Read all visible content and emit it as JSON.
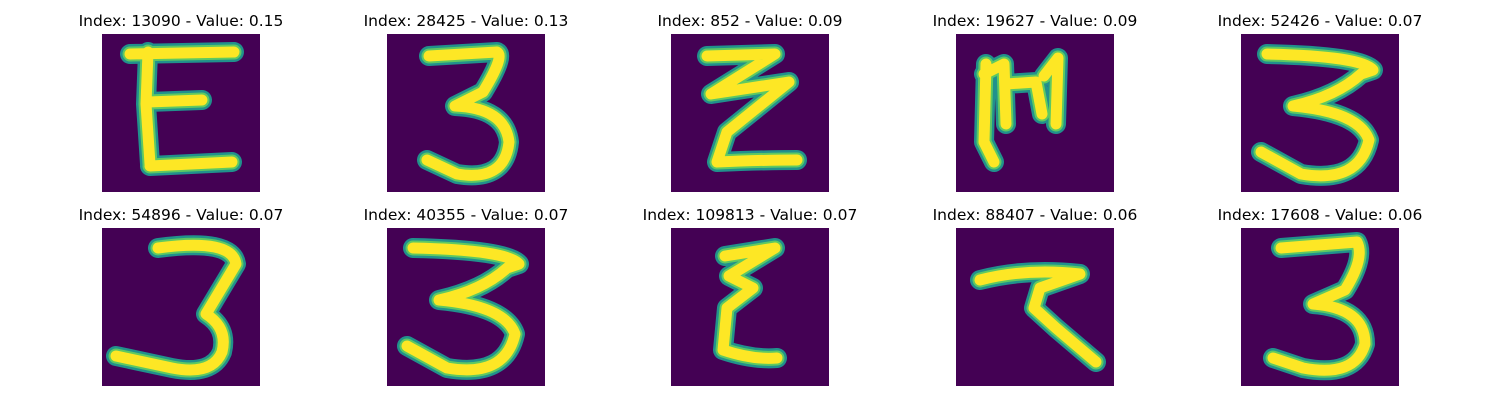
{
  "panels": [
    {
      "title": "Index: 13090 - Value: 0.15",
      "glyph": "E"
    },
    {
      "title": "Index: 28425 - Value: 0.13",
      "glyph": "3"
    },
    {
      "title": "Index: 852 - Value: 0.09",
      "glyph": "z-zigzag"
    },
    {
      "title": "Index: 19627 - Value: 0.09",
      "glyph": "m-rotated"
    },
    {
      "title": "Index: 52426 - Value: 0.07",
      "glyph": "3-wide"
    },
    {
      "title": "Index: 54896 - Value: 0.07",
      "glyph": "3-tall"
    },
    {
      "title": "Index: 40355 - Value: 0.07",
      "glyph": "3-wide"
    },
    {
      "title": "Index: 109813 - Value: 0.07",
      "glyph": "epsilon"
    },
    {
      "title": "Index: 88407 - Value: 0.06",
      "glyph": "seven-like"
    },
    {
      "title": "Index: 17608 - Value: 0.06",
      "glyph": "3-bold"
    }
  ],
  "colors": {
    "background": "#440154",
    "stroke_edge": "#21918c",
    "stroke_mid": "#5ec962",
    "stroke_core": "#fde725"
  }
}
